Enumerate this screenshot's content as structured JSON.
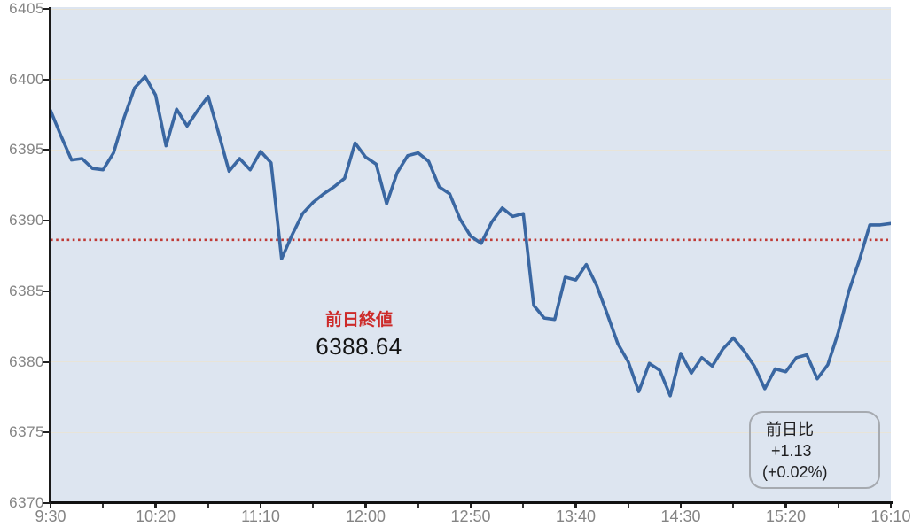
{
  "chart_data": {
    "type": "line",
    "title": "",
    "xlabel": "",
    "ylabel": "",
    "ylim": [
      6370,
      6405
    ],
    "grid": "horizontal",
    "y_ticks": [
      6405,
      6400,
      6395,
      6390,
      6385,
      6380,
      6375,
      6370
    ],
    "x_tick_labels": [
      "9:30",
      "10:20",
      "11:10",
      "12:00",
      "12:50",
      "13:40",
      "14:30",
      "15:20",
      "16:10"
    ],
    "x": [
      "9:30",
      "9:35",
      "9:40",
      "9:45",
      "9:50",
      "9:55",
      "10:00",
      "10:05",
      "10:10",
      "10:15",
      "10:20",
      "10:25",
      "10:30",
      "10:35",
      "10:40",
      "10:45",
      "10:50",
      "10:55",
      "11:00",
      "11:05",
      "11:10",
      "11:15",
      "11:20",
      "11:25",
      "11:30",
      "11:35",
      "11:40",
      "11:45",
      "11:50",
      "11:55",
      "12:00",
      "12:05",
      "12:10",
      "12:15",
      "12:20",
      "12:25",
      "12:30",
      "12:35",
      "12:40",
      "12:45",
      "12:50",
      "12:55",
      "13:00",
      "13:05",
      "13:10",
      "13:15",
      "13:20",
      "13:25",
      "13:30",
      "13:35",
      "13:40",
      "13:45",
      "13:50",
      "13:55",
      "14:00",
      "14:05",
      "14:10",
      "14:15",
      "14:20",
      "14:25",
      "14:30",
      "14:35",
      "14:40",
      "14:45",
      "14:50",
      "14:55",
      "15:00",
      "15:05",
      "15:10",
      "15:15",
      "15:20",
      "15:25",
      "15:30",
      "15:35",
      "15:40",
      "15:45",
      "15:50",
      "15:55",
      "16:00",
      "16:05",
      "16:10"
    ],
    "values": [
      6397.8,
      6396.0,
      6394.3,
      6394.4,
      6393.7,
      6393.6,
      6394.8,
      6397.3,
      6399.4,
      6400.2,
      6398.9,
      6395.3,
      6397.9,
      6396.7,
      6397.8,
      6398.8,
      6396.2,
      6393.5,
      6394.4,
      6393.6,
      6394.9,
      6394.1,
      6387.3,
      6389.0,
      6390.5,
      6391.3,
      6391.9,
      6392.4,
      6393.0,
      6395.5,
      6394.5,
      6394.0,
      6391.2,
      6393.4,
      6394.6,
      6394.8,
      6394.2,
      6392.4,
      6391.9,
      6390.1,
      6388.9,
      6388.4,
      6389.9,
      6390.9,
      6390.3,
      6390.5,
      6384.0,
      6383.1,
      6383.0,
      6386.0,
      6385.8,
      6386.9,
      6385.4,
      6383.4,
      6381.3,
      6380.0,
      6377.9,
      6379.9,
      6379.4,
      6377.6,
      6380.6,
      6379.2,
      6380.3,
      6379.7,
      6380.9,
      6381.7,
      6380.8,
      6379.7,
      6378.1,
      6379.5,
      6379.3,
      6380.3,
      6380.5,
      6378.8,
      6379.8,
      6382.1,
      6385.0,
      6387.2,
      6389.7,
      6389.7,
      6389.8
    ],
    "prev_close": 6388.64,
    "last_value": 6389.77,
    "change": "+1.13",
    "change_pct": "+0.02%",
    "legend": "none"
  },
  "annotations": {
    "prev_close_label": "前日終値",
    "prev_close_value": "6388.64",
    "change_box": {
      "title": "前日比",
      "change": "+1.13",
      "change_pct": "(+0.02%)"
    }
  },
  "colors": {
    "price_line": "#3a67a2",
    "prev_close_line": "#c03a36",
    "prev_close_label_text": "#cd2a29",
    "plot_background": "#dde5f0",
    "gridline": "#e8e4d8",
    "axis": "#1a1a1a",
    "tick_label": "#848484",
    "box_border": "#a6aab0",
    "box_text": "#1d1d1f"
  }
}
